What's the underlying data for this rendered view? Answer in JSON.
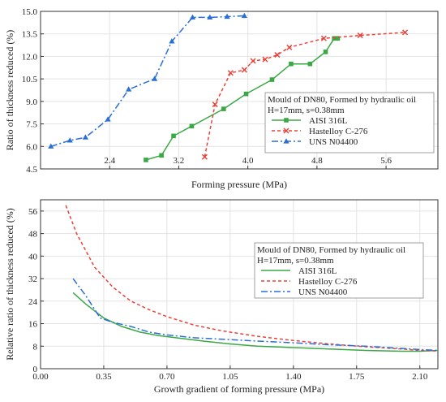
{
  "chart_data": [
    {
      "type": "line",
      "xlabel": "Forming pressure (MPa)",
      "ylabel": "Ratio of thickness reduced (%)",
      "xlim": [
        1.6,
        6.2
      ],
      "ylim": [
        4.5,
        15.0
      ],
      "xticks": [
        "2.4",
        "3.2",
        "4.0",
        "4.8",
        "5.6"
      ],
      "yticks": [
        "4.5",
        "6.0",
        "7.5",
        "9.0",
        "10.5",
        "12.0",
        "13.5",
        "15.0"
      ],
      "grid": true,
      "legend": {
        "placement": "right",
        "title_lines": [
          "Mould of DN80, Formed by hydraulic oil",
          "H=17mm, s=0.38mm"
        ]
      },
      "series": [
        {
          "name": "AISI 316L",
          "color": "#3aa845",
          "style": "solid",
          "marker": "square",
          "x": [
            2.82,
            3.0,
            3.14,
            3.35,
            3.72,
            3.98,
            4.28,
            4.5,
            4.72,
            4.9,
            5.0,
            5.04
          ],
          "y": [
            5.1,
            5.4,
            6.7,
            7.35,
            8.5,
            9.5,
            10.45,
            11.5,
            11.5,
            12.3,
            13.2,
            13.2
          ]
        },
        {
          "name": "Hastelloy C-276",
          "color": "#e8433a",
          "style": "dashed",
          "marker": "x",
          "x": [
            3.5,
            3.62,
            3.8,
            3.96,
            4.06,
            4.2,
            4.34,
            4.48,
            4.88,
            5.3,
            5.82
          ],
          "y": [
            5.3,
            8.8,
            10.9,
            11.1,
            11.7,
            11.8,
            12.1,
            12.6,
            13.2,
            13.4,
            13.6
          ]
        },
        {
          "name": "UNS N04400",
          "color": "#2a6fd6",
          "style": "dashdot",
          "marker": "triangle",
          "x": [
            1.72,
            1.94,
            2.12,
            2.38,
            2.62,
            2.92,
            3.12,
            3.36,
            3.56,
            3.76,
            3.96
          ],
          "y": [
            6.0,
            6.4,
            6.6,
            7.8,
            9.8,
            10.5,
            13.0,
            14.6,
            14.6,
            14.65,
            14.7
          ]
        }
      ]
    },
    {
      "type": "line",
      "xlabel": "Growth gradient of forming pressure (MPa)",
      "ylabel": "Relative ratio of thickness reduced (%)",
      "xlim": [
        0.0,
        2.2
      ],
      "ylim": [
        0,
        60
      ],
      "xticks": [
        "0.00",
        "0.35",
        "0.70",
        "1.05",
        "1.40",
        "1.75",
        "2.10"
      ],
      "yticks": [
        "0",
        "8",
        "16",
        "24",
        "32",
        "40",
        "48",
        "56"
      ],
      "grid": true,
      "legend": {
        "placement": "right",
        "title_lines": [
          "Mould of DN80, Formed by hydraulic oil",
          "H=17mm, s=0.38mm"
        ]
      },
      "series": [
        {
          "name": "AISI 316L",
          "color": "#3aa845",
          "style": "solid",
          "x": [
            0.18,
            0.25,
            0.35,
            0.45,
            0.55,
            0.65,
            0.75,
            0.9,
            1.05,
            1.2,
            1.4,
            1.6,
            1.8,
            2.0,
            2.1,
            2.2
          ],
          "y": [
            27,
            23,
            18,
            15,
            13,
            11.8,
            11,
            9.8,
            8.8,
            8,
            7.5,
            7,
            6.5,
            6.2,
            6.2,
            6.5
          ]
        },
        {
          "name": "Hastelloy C-276",
          "color": "#e8433a",
          "style": "dashed",
          "x": [
            0.14,
            0.2,
            0.3,
            0.4,
            0.5,
            0.6,
            0.7,
            0.85,
            1.0,
            1.2,
            1.4,
            1.6,
            1.8,
            2.0,
            2.1,
            2.2
          ],
          "y": [
            58,
            48,
            36,
            29,
            24,
            21,
            18.5,
            15.5,
            13.5,
            11.5,
            10,
            8.8,
            7.8,
            7,
            6.5,
            6.3
          ]
        },
        {
          "name": "UNS N04400",
          "color": "#2a6fd6",
          "style": "dashdot",
          "x": [
            0.18,
            0.25,
            0.33,
            0.4,
            0.5,
            0.6,
            0.7,
            0.85,
            1.0,
            1.2,
            1.4,
            1.6,
            1.8,
            2.0,
            2.1,
            2.2
          ],
          "y": [
            32,
            26,
            18,
            16.5,
            15,
            13,
            12,
            11,
            10.5,
            9.8,
            9.2,
            8.5,
            8,
            7.2,
            6.8,
            6.5
          ]
        }
      ]
    }
  ]
}
